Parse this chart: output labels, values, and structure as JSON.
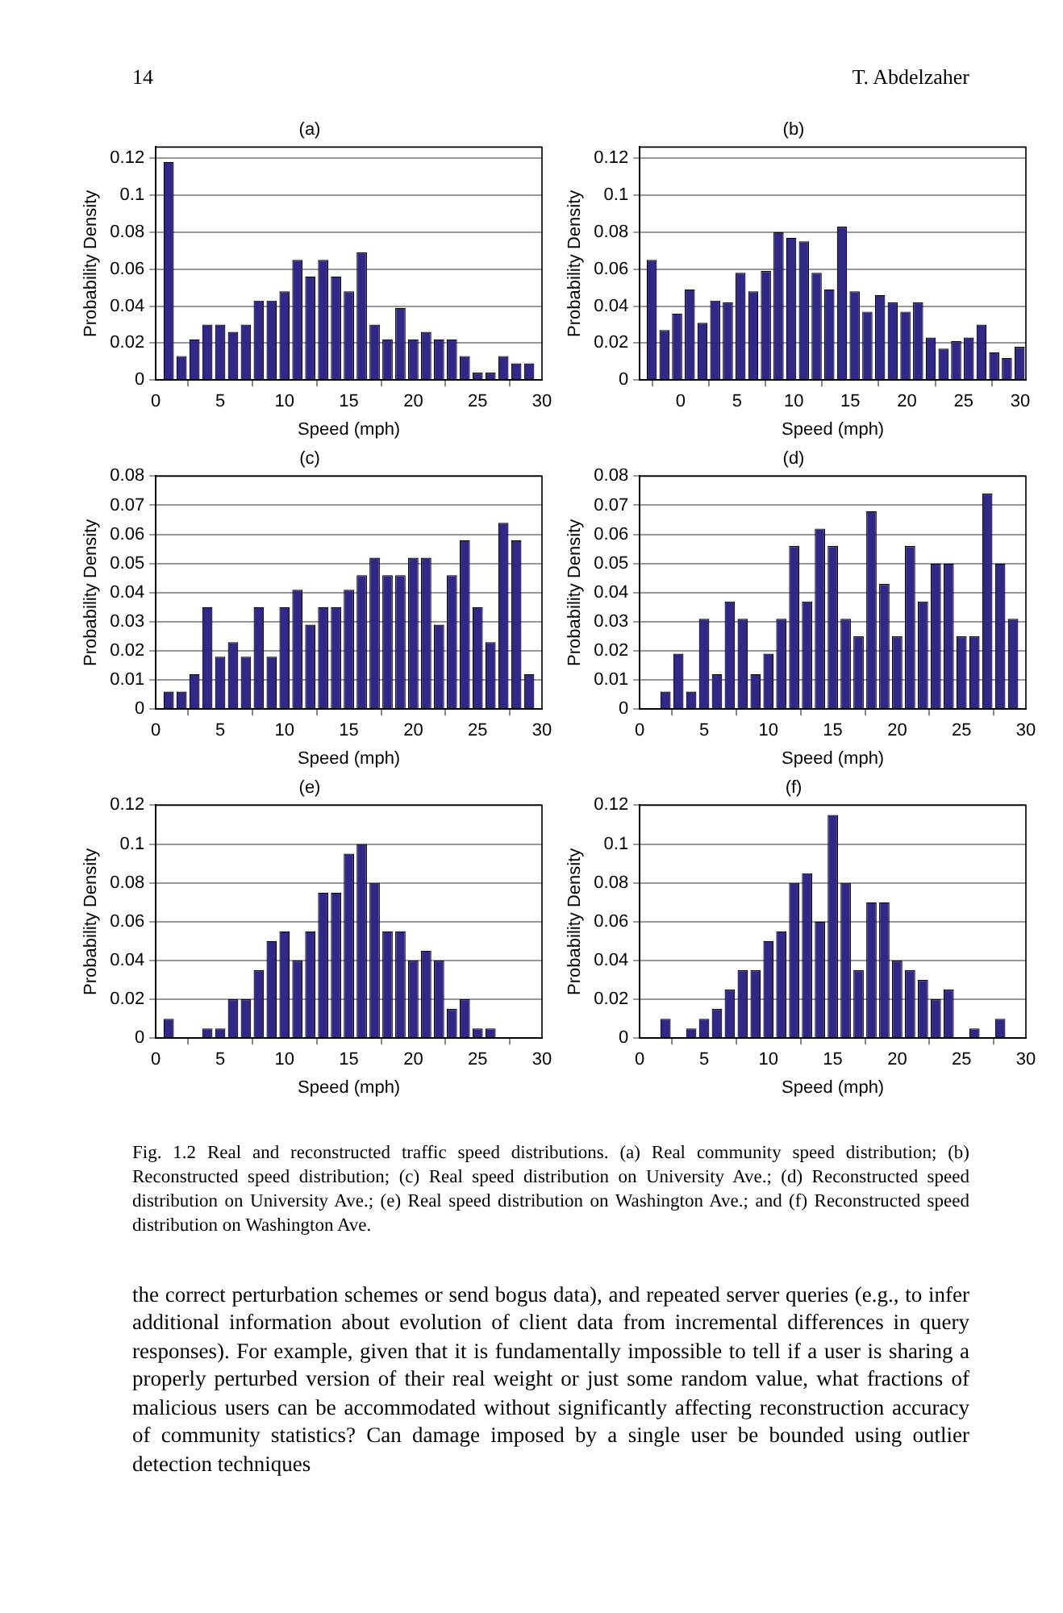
{
  "chart_data": [
    {
      "type": "histogram",
      "title": "(a)",
      "xlabel": "Speed (mph)",
      "ylabel": "Probability Density",
      "color": "#2f2888",
      "grid": "y",
      "bins": [
        0.5,
        1.5,
        2.5,
        3.5,
        4.5,
        5.5,
        6.5,
        7.5,
        8.5,
        9.5,
        10.5,
        11.5,
        12.5,
        13.5,
        14.5,
        15.5,
        16.5,
        17.5,
        18.5,
        19.5,
        20.5,
        21.5,
        22.5,
        23.5,
        24.5,
        25.5,
        26.5,
        27.5,
        28.5,
        29.5
      ],
      "values": [
        0.118,
        0.013,
        0.022,
        0.03,
        0.03,
        0.026,
        0.03,
        0.043,
        0.043,
        0.048,
        0.065,
        0.056,
        0.065,
        0.056,
        0.048,
        0.069,
        0.03,
        0.022,
        0.039,
        0.022,
        0.026,
        0.022,
        0.022,
        0.013,
        0.004,
        0.004,
        0.013,
        0.009,
        0.009
      ],
      "xlim": [
        0,
        30
      ],
      "xticks": [
        0,
        5,
        10,
        15,
        20,
        25,
        30
      ],
      "ylim": [
        0,
        0.126
      ],
      "yticks": [
        0,
        0.02,
        0.04,
        0.06,
        0.08,
        0.1,
        0.12
      ],
      "annotations": [
        "14",
        "T. Abdelzaher"
      ]
    },
    {
      "type": "histogram",
      "title": "(b)",
      "xlabel": "Speed (mph)",
      "ylabel": "Probability Density",
      "color": "#2f2888",
      "grid": "y",
      "bins": [
        -3.1,
        -1.98,
        -0.86,
        0.26,
        1.38,
        2.5,
        3.62,
        4.74,
        5.86,
        6.98,
        8.1,
        9.22,
        10.34,
        11.46,
        12.58,
        13.7,
        14.82,
        15.94,
        17.06,
        18.18,
        19.3,
        20.42,
        21.54,
        22.66,
        23.78,
        24.9,
        26.02,
        27.14,
        28.26,
        29.38,
        30.5
      ],
      "values": [
        0.065,
        0.027,
        0.036,
        0.049,
        0.031,
        0.043,
        0.042,
        0.058,
        0.048,
        0.059,
        0.08,
        0.077,
        0.075,
        0.058,
        0.049,
        0.083,
        0.048,
        0.037,
        0.046,
        0.042,
        0.037,
        0.042,
        0.023,
        0.017,
        0.021,
        0.023,
        0.03,
        0.015,
        0.012,
        0.018
      ],
      "xlim": [
        -3.6,
        30.5
      ],
      "xticks": [
        0,
        5,
        10,
        15,
        20,
        25,
        30
      ],
      "ylim": [
        0,
        0.126
      ],
      "yticks": [
        0,
        0.02,
        0.04,
        0.06,
        0.08,
        0.1,
        0.12
      ]
    },
    {
      "type": "histogram",
      "title": "(c)",
      "xlabel": "Speed (mph)",
      "ylabel": "Probability Density",
      "color": "#2f2888",
      "grid": "y",
      "bins": [
        0.5,
        1.5,
        2.5,
        3.5,
        4.5,
        5.5,
        6.5,
        7.5,
        8.5,
        9.5,
        10.5,
        11.5,
        12.5,
        13.5,
        14.5,
        15.5,
        16.5,
        17.5,
        18.5,
        19.5,
        20.5,
        21.5,
        22.5,
        23.5,
        24.5,
        25.5,
        26.5,
        27.5,
        28.5,
        29.5
      ],
      "values": [
        0.006,
        0.006,
        0.012,
        0.035,
        0.018,
        0.023,
        0.018,
        0.035,
        0.018,
        0.035,
        0.041,
        0.029,
        0.035,
        0.035,
        0.041,
        0.046,
        0.052,
        0.046,
        0.046,
        0.052,
        0.052,
        0.029,
        0.046,
        0.058,
        0.035,
        0.023,
        0.064,
        0.058,
        0.012
      ],
      "xlim": [
        0,
        30
      ],
      "xticks": [
        0,
        5,
        10,
        15,
        20,
        25,
        30
      ],
      "ylim": [
        0,
        0.08
      ],
      "yticks": [
        0,
        0.01,
        0.02,
        0.03,
        0.04,
        0.05,
        0.06,
        0.07,
        0.08
      ]
    },
    {
      "type": "histogram",
      "title": "(d)",
      "xlabel": "Speed (mph)",
      "ylabel": "Probability Density",
      "color": "#2f2888",
      "grid": "y",
      "bins": [
        1.5,
        2.5,
        3.5,
        4.5,
        5.5,
        6.5,
        7.5,
        8.5,
        9.5,
        10.5,
        11.5,
        12.5,
        13.5,
        14.5,
        15.5,
        16.5,
        17.5,
        18.5,
        19.5,
        20.5,
        21.5,
        22.5,
        23.5,
        24.5,
        25.5,
        26.5,
        27.5,
        28.5,
        29.5
      ],
      "values": [
        0.006,
        0.019,
        0.006,
        0.031,
        0.012,
        0.037,
        0.031,
        0.012,
        0.019,
        0.031,
        0.056,
        0.037,
        0.062,
        0.056,
        0.031,
        0.025,
        0.068,
        0.043,
        0.025,
        0.056,
        0.037,
        0.05,
        0.05,
        0.025,
        0.025,
        0.074,
        0.05,
        0.031
      ],
      "xlim": [
        0,
        30
      ],
      "xticks": [
        0,
        5,
        10,
        15,
        20,
        25,
        30
      ],
      "ylim": [
        0,
        0.08
      ],
      "yticks": [
        0,
        0.01,
        0.02,
        0.03,
        0.04,
        0.05,
        0.06,
        0.07,
        0.08
      ]
    },
    {
      "type": "histogram",
      "title": "(e)",
      "xlabel": "Speed (mph)",
      "ylabel": "Probability Density",
      "color": "#2f2888",
      "grid": "y",
      "bins": [
        0.5,
        1.5,
        2.5,
        3.5,
        4.5,
        5.5,
        6.5,
        7.5,
        8.5,
        9.5,
        10.5,
        11.5,
        12.5,
        13.5,
        14.5,
        15.5,
        16.5,
        17.5,
        18.5,
        19.5,
        20.5,
        21.5,
        22.5,
        23.5,
        24.5,
        25.5,
        26.5
      ],
      "values": [
        0.01,
        0,
        0,
        0.005,
        0.005,
        0.02,
        0.02,
        0.035,
        0.05,
        0.055,
        0.04,
        0.055,
        0.075,
        0.075,
        0.095,
        0.1,
        0.08,
        0.055,
        0.055,
        0.04,
        0.045,
        0.04,
        0.015,
        0.02,
        0.005,
        0.005
      ],
      "xlim": [
        0,
        30
      ],
      "xticks": [
        0,
        5,
        10,
        15,
        20,
        25,
        30
      ],
      "ylim": [
        0,
        0.12
      ],
      "yticks": [
        0,
        0.02,
        0.04,
        0.06,
        0.08,
        0.1,
        0.12
      ]
    },
    {
      "type": "histogram",
      "title": "(f)",
      "xlabel": "Speed (mph)",
      "ylabel": "Probability Density",
      "color": "#2f2888",
      "grid": "y",
      "bins": [
        1.5,
        2.5,
        3.5,
        4.5,
        5.5,
        6.5,
        7.5,
        8.5,
        9.5,
        10.5,
        11.5,
        12.5,
        13.5,
        14.5,
        15.5,
        16.5,
        17.5,
        18.5,
        19.5,
        20.5,
        21.5,
        22.5,
        23.5,
        24.5,
        25.5,
        26.5,
        27.5,
        28.5
      ],
      "values": [
        0.01,
        0,
        0.005,
        0.01,
        0.015,
        0.025,
        0.035,
        0.035,
        0.05,
        0.055,
        0.08,
        0.085,
        0.06,
        0.115,
        0.08,
        0.035,
        0.07,
        0.07,
        0.04,
        0.035,
        0.03,
        0.02,
        0.025,
        0,
        0.005,
        0,
        0.01
      ],
      "xlim": [
        0,
        30
      ],
      "xticks": [
        0,
        5,
        10,
        15,
        20,
        25,
        30
      ],
      "ylim": [
        0,
        0.12
      ],
      "yticks": [
        0,
        0.02,
        0.04,
        0.06,
        0.08,
        0.1,
        0.12
      ],
      "annotations": [
        "Fig. 1.2 Real and reconstructed traffic speed distributions. (a) Real community speed distribution; (b) Reconstructed speed distribution; (c) Real speed distribution on University Ave.; (d) Reconstructed speed distribution on University Ave.; (e) Real speed distribution on Washington Ave.; and (f) Reconstructed speed distribution on Washington Ave.",
        "the correct perturbation schemes or send bogus data), and repeated server queries (e.g., to infer additional information about evolution of client data from incremental differences in query responses). For example, given that it is fundamentally impossible to tell if a user is sharing a properly perturbed version of their real weight or just some random value, what fractions of malicious users can be accommodated without significantly affecting reconstruction accuracy of community statistics? Can damage imposed by a single user be bounded using outlier detection techniques"
      ]
    }
  ]
}
